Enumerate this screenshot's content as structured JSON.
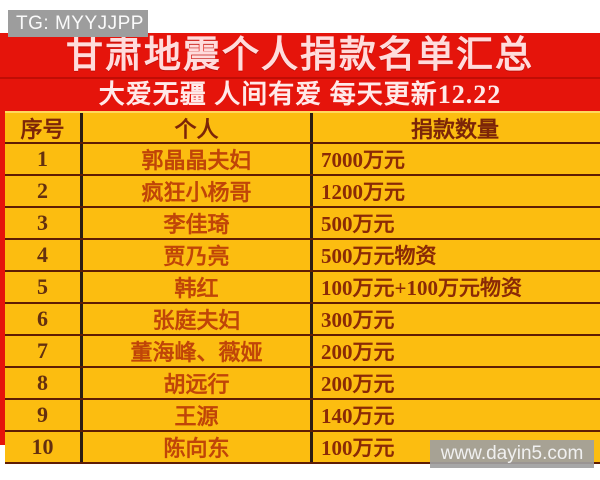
{
  "watermark_top": {
    "label": "TG: MYYJJPP"
  },
  "banner": {
    "title": "甘肃地震个人捐款名单汇总",
    "subtitle": "大爱无疆  人间有爱  每天更新12.22"
  },
  "table": {
    "headers": {
      "no": "序号",
      "name": "个人",
      "amount": "捐款数量"
    },
    "rows": [
      {
        "no": "1",
        "name": "郭晶晶夫妇",
        "amount": "7000万元"
      },
      {
        "no": "2",
        "name": "疯狂小杨哥",
        "amount": "1200万元"
      },
      {
        "no": "3",
        "name": "李佳琦",
        "amount": "500万元"
      },
      {
        "no": "4",
        "name": "贾乃亮",
        "amount": "500万元物资"
      },
      {
        "no": "5",
        "name": "韩红",
        "amount": "100万元+100万元物资"
      },
      {
        "no": "6",
        "name": "张庭夫妇",
        "amount": "300万元"
      },
      {
        "no": "7",
        "name": "董海峰、薇娅",
        "amount": "200万元"
      },
      {
        "no": "8",
        "name": "胡远行",
        "amount": "200万元"
      },
      {
        "no": "9",
        "name": "王源",
        "amount": "140万元"
      },
      {
        "no": "10",
        "name": "陈向东",
        "amount": "100万元"
      }
    ]
  },
  "watermark_bottom": {
    "label": "www.dayin5.com"
  },
  "colors": {
    "banner_red": "#e5140b",
    "cell_gold": "#fcbd10",
    "row_border": "#5e1c03",
    "column_border": "#2b1c12",
    "title_text": "#ffdcdc",
    "header_text": "#7c2508",
    "name_text": "#c04508",
    "amount_text": "#8a2a06",
    "badge_gray": "#9d9d9d"
  }
}
